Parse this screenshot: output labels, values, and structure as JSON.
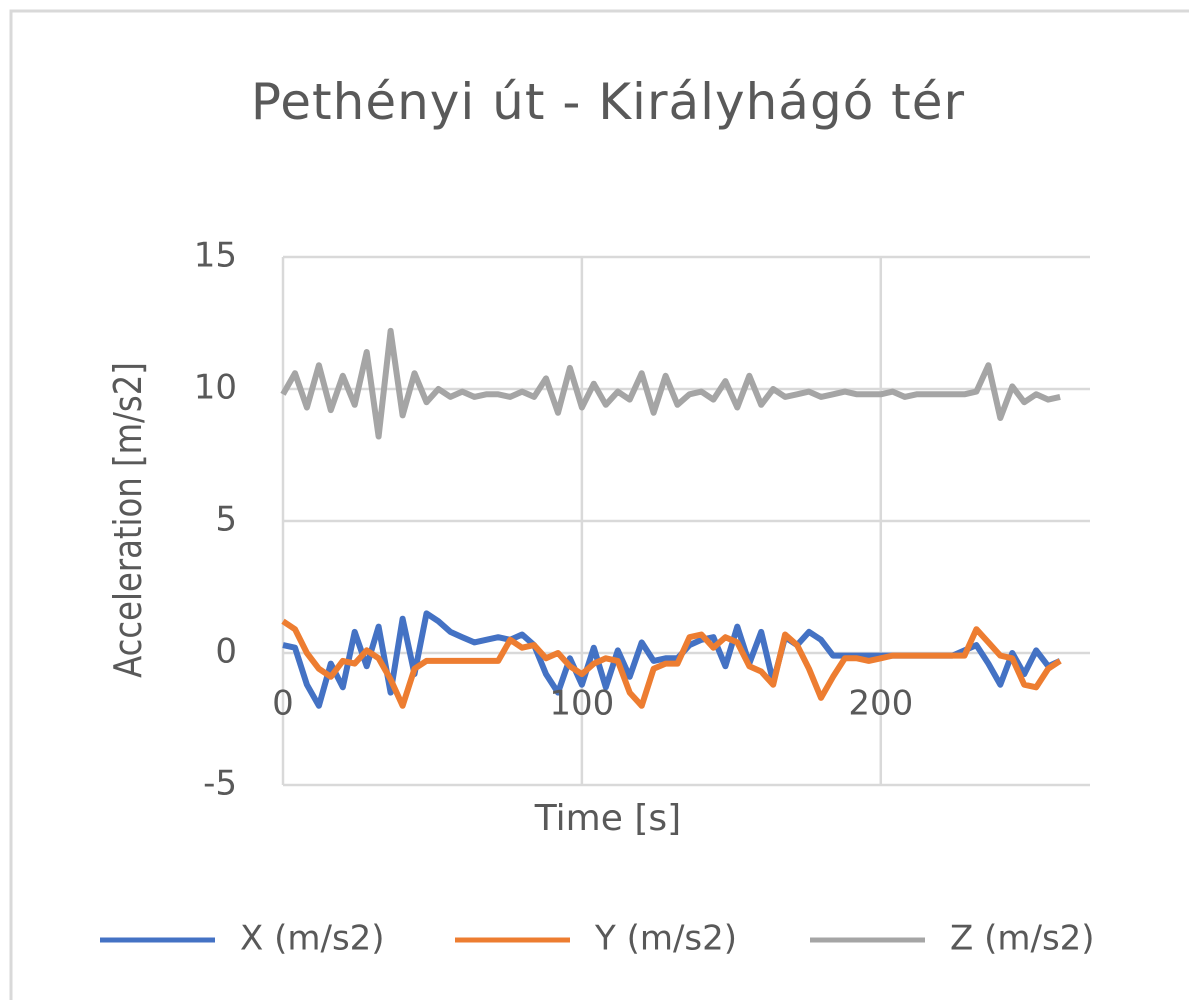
{
  "chart_data": {
    "type": "line",
    "title": "Pethényi út - Királyhágó tér",
    "x_label": "Time [s]",
    "y_label": "Acceleration [m/s2]",
    "x": [
      0,
      4,
      8,
      12,
      16,
      20,
      24,
      28,
      32,
      36,
      40,
      44,
      48,
      52,
      56,
      60,
      64,
      68,
      72,
      76,
      80,
      84,
      88,
      92,
      96,
      100,
      104,
      108,
      112,
      116,
      120,
      124,
      128,
      132,
      136,
      140,
      144,
      148,
      152,
      156,
      160,
      164,
      168,
      172,
      176,
      180,
      184,
      188,
      192,
      196,
      200,
      204,
      208,
      212,
      216,
      220,
      224,
      228,
      232,
      236,
      240,
      244,
      248,
      252,
      256,
      260
    ],
    "series": [
      {
        "name": "X (m/s2)",
        "color": "#4472c4",
        "values": [
          0.3,
          0.2,
          -1.2,
          -2.0,
          -0.4,
          -1.3,
          0.8,
          -0.5,
          1.0,
          -1.5,
          1.3,
          -0.8,
          1.5,
          1.2,
          0.8,
          0.6,
          0.4,
          0.5,
          0.6,
          0.5,
          0.7,
          0.3,
          -0.8,
          -1.5,
          -0.2,
          -1.2,
          0.2,
          -1.3,
          0.1,
          -0.9,
          0.4,
          -0.3,
          -0.2,
          -0.2,
          0.3,
          0.5,
          0.6,
          -0.5,
          1.0,
          -0.4,
          0.8,
          -1.1,
          0.6,
          0.3,
          0.8,
          0.5,
          -0.1,
          -0.1,
          -0.1,
          -0.1,
          -0.1,
          -0.1,
          -0.1,
          -0.1,
          -0.1,
          -0.1,
          -0.1,
          0.1,
          0.3,
          -0.4,
          -1.2,
          0.0,
          -0.8,
          0.1,
          -0.5,
          -0.3
        ]
      },
      {
        "name": "Y (m/s2)",
        "color": "#ed7d31",
        "values": [
          1.2,
          0.9,
          0.0,
          -0.6,
          -0.9,
          -0.3,
          -0.4,
          0.1,
          -0.2,
          -1.0,
          -2.0,
          -0.6,
          -0.3,
          -0.3,
          -0.3,
          -0.3,
          -0.3,
          -0.3,
          -0.3,
          0.5,
          0.2,
          0.3,
          -0.2,
          0.0,
          -0.5,
          -0.8,
          -0.4,
          -0.2,
          -0.3,
          -1.5,
          -2.0,
          -0.6,
          -0.4,
          -0.4,
          0.6,
          0.7,
          0.2,
          0.6,
          0.4,
          -0.5,
          -0.7,
          -1.2,
          0.7,
          0.3,
          -0.6,
          -1.7,
          -0.9,
          -0.2,
          -0.2,
          -0.3,
          -0.2,
          -0.1,
          -0.1,
          -0.1,
          -0.1,
          -0.1,
          -0.1,
          -0.1,
          0.9,
          0.4,
          -0.1,
          -0.2,
          -1.2,
          -1.3,
          -0.6,
          -0.3
        ]
      },
      {
        "name": "Z (m/s2)",
        "color": "#a5a5a5",
        "values": [
          9.8,
          10.6,
          9.3,
          10.9,
          9.2,
          10.5,
          9.4,
          11.4,
          8.2,
          12.2,
          9.0,
          10.6,
          9.5,
          10.0,
          9.7,
          9.9,
          9.7,
          9.8,
          9.8,
          9.7,
          9.9,
          9.7,
          10.4,
          9.1,
          10.8,
          9.3,
          10.2,
          9.4,
          9.9,
          9.6,
          10.6,
          9.1,
          10.5,
          9.4,
          9.8,
          9.9,
          9.6,
          10.3,
          9.3,
          10.5,
          9.4,
          10.0,
          9.7,
          9.8,
          9.9,
          9.7,
          9.8,
          9.9,
          9.8,
          9.8,
          9.8,
          9.9,
          9.7,
          9.8,
          9.8,
          9.8,
          9.8,
          9.8,
          9.9,
          10.9,
          8.9,
          10.1,
          9.5,
          9.8,
          9.6,
          9.7
        ]
      }
    ],
    "xlim": [
      0,
      270
    ],
    "xticks": [
      0,
      100,
      200
    ],
    "ylim": [
      -5,
      15
    ],
    "yticks": [
      -5,
      0,
      5,
      10,
      15
    ],
    "grid": true,
    "legend": "bottom"
  }
}
